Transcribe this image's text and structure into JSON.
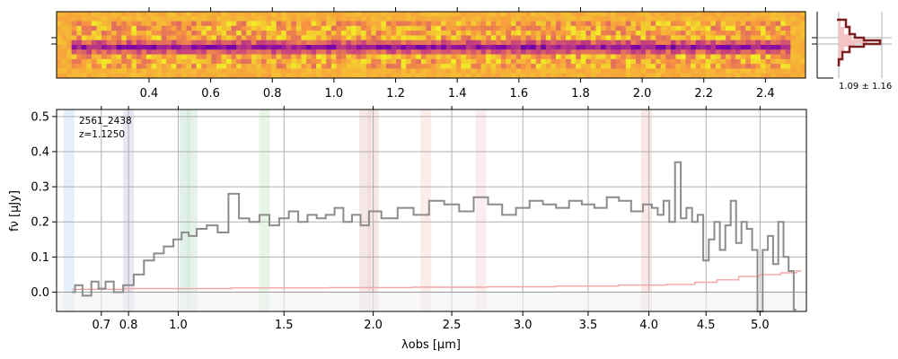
{
  "chart_data": [
    {
      "type": "heatmap",
      "name": "2d-spectrum",
      "colormap": "plasma",
      "colors": [
        "#0d0887",
        "#7e03a8",
        "#cc4778",
        "#f89540",
        "#f0f921"
      ],
      "x_tick_labels": [
        "0.4",
        "0.6",
        "0.8",
        "1.0",
        "1.2",
        "1.4",
        "1.6",
        "1.8",
        "2.0",
        "2.2",
        "2.4"
      ],
      "x_tick_values": [
        0.4,
        0.6,
        0.8,
        1.0,
        1.2,
        1.4,
        1.6,
        1.8,
        2.0,
        2.2,
        2.4
      ],
      "xlim": [
        0.1,
        2.53
      ],
      "trace_row_fraction": 0.55
    },
    {
      "type": "histogram",
      "name": "pixel-distribution",
      "label": "1.09 ± 1.16"
    },
    {
      "type": "line",
      "name": "1d-spectrum",
      "id_label": "2561_2438",
      "z_label": "z=1.1250",
      "xlabel": "λobs [μm]",
      "ylabel": "fν [μJy]",
      "xlim": [
        0.55,
        5.45
      ],
      "ylim": [
        -0.055,
        0.52
      ],
      "x_ticks": [
        0.7,
        0.8,
        1.0,
        1.5,
        2.0,
        2.5,
        3.0,
        3.5,
        4.0,
        4.5,
        5.0
      ],
      "x_tick_labels": [
        "0.7",
        "0.8",
        "1.0",
        "1.5",
        "2.0",
        "2.5",
        "3.0",
        "3.5",
        "4.0",
        "4.5",
        "5.0"
      ],
      "y_ticks": [
        0.0,
        0.1,
        0.2,
        0.3,
        0.4,
        0.5
      ],
      "y_tick_labels": [
        "0.0",
        "0.1",
        "0.2",
        "0.3",
        "0.4",
        "0.5"
      ],
      "grid": true,
      "series": [
        {
          "role": "flux",
          "color": "#8c8c8c",
          "x": [
            0.6,
            0.62,
            0.65,
            0.68,
            0.7,
            0.73,
            0.76,
            0.8,
            0.84,
            0.88,
            0.92,
            0.96,
            1.0,
            1.03,
            1.06,
            1.1,
            1.15,
            1.2,
            1.25,
            1.3,
            1.35,
            1.4,
            1.45,
            1.5,
            1.55,
            1.6,
            1.65,
            1.7,
            1.75,
            1.8,
            1.85,
            1.9,
            1.95,
            2.0,
            2.1,
            2.2,
            2.3,
            2.4,
            2.5,
            2.6,
            2.7,
            2.8,
            2.9,
            3.0,
            3.1,
            3.2,
            3.3,
            3.4,
            3.5,
            3.6,
            3.7,
            3.8,
            3.9,
            4.0,
            4.05,
            4.1,
            4.15,
            4.2,
            4.25,
            4.3,
            4.35,
            4.4,
            4.45,
            4.5,
            4.55,
            4.6,
            4.65,
            4.7,
            4.75,
            4.8,
            4.85,
            4.9,
            4.95,
            5.0,
            5.05,
            5.1,
            5.15,
            5.2,
            5.25,
            5.3,
            5.35
          ],
          "y": [
            0.0,
            0.02,
            -0.01,
            0.03,
            0.01,
            0.03,
            0.0,
            0.02,
            0.05,
            0.09,
            0.11,
            0.13,
            0.15,
            0.17,
            0.16,
            0.18,
            0.19,
            0.17,
            0.28,
            0.21,
            0.2,
            0.22,
            0.19,
            0.21,
            0.23,
            0.2,
            0.22,
            0.21,
            0.22,
            0.24,
            0.2,
            0.22,
            0.19,
            0.23,
            0.21,
            0.24,
            0.22,
            0.26,
            0.25,
            0.23,
            0.27,
            0.25,
            0.22,
            0.24,
            0.26,
            0.25,
            0.24,
            0.26,
            0.25,
            0.24,
            0.27,
            0.26,
            0.23,
            0.25,
            0.24,
            0.22,
            0.26,
            0.2,
            0.37,
            0.21,
            0.24,
            0.2,
            0.22,
            0.09,
            0.15,
            0.2,
            0.12,
            0.19,
            0.26,
            0.14,
            0.2,
            0.18,
            0.12,
            -0.06,
            0.12,
            0.16,
            0.08,
            0.2,
            0.1,
            0.06,
            -0.05
          ]
        },
        {
          "role": "error",
          "color": "#f4a6a6",
          "x": [
            0.6,
            1.0,
            1.5,
            2.0,
            2.5,
            3.0,
            3.5,
            4.0,
            4.3,
            4.5,
            4.7,
            4.9,
            5.1,
            5.3,
            5.4
          ],
          "y": [
            0.008,
            0.01,
            0.012,
            0.013,
            0.014,
            0.015,
            0.017,
            0.02,
            0.022,
            0.028,
            0.035,
            0.045,
            0.05,
            0.055,
            0.06
          ]
        }
      ],
      "line_markers": [
        {
          "x": 0.59,
          "color": "#cfe0f7"
        },
        {
          "x": 0.8,
          "color": "#d8d4ec"
        },
        {
          "x": 1.03,
          "color": "#c9e4d8"
        },
        {
          "x": 1.06,
          "color": "#d3ead8"
        },
        {
          "x": 1.4,
          "color": "#d4ecd4"
        },
        {
          "x": 1.95,
          "color": "#ecd4d4"
        },
        {
          "x": 2.0,
          "color": "#ecd0d0"
        },
        {
          "x": 2.33,
          "color": "#f9dcd8"
        },
        {
          "x": 2.7,
          "color": "#f7dde3"
        },
        {
          "x": 3.98,
          "color": "#f4d2d2"
        }
      ]
    }
  ]
}
